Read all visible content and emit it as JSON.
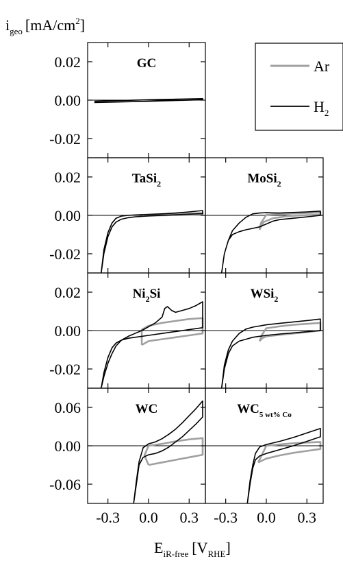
{
  "chart_data": {
    "type": "line",
    "y_axis_title": {
      "main": "i",
      "sub": "geo",
      "unit_pre": "[mA/cm",
      "unit_sup": "2",
      "unit_post": "]"
    },
    "x_axis_title": {
      "main": "E",
      "sub": "iR-free",
      "unit_pre": "[V",
      "unit_sub": "RHE",
      "unit_post": "]"
    },
    "legend": {
      "placement": "top-right",
      "entries": [
        {
          "name": "Ar",
          "color": "#a0a0a0"
        },
        {
          "name": "H",
          "sub": "2",
          "color": "#000000"
        }
      ]
    },
    "xlim": [
      -0.45,
      0.42
    ],
    "x_ticks": [
      -0.3,
      0.0,
      0.3
    ],
    "x_tick_labels": [
      "-0.3",
      "0.0",
      "0.3"
    ],
    "rows": [
      {
        "ylim": [
          -0.03,
          0.03
        ],
        "y_ticks": [
          0.02,
          0.0,
          -0.02
        ],
        "y_tick_labels": [
          "0.02",
          "0.00",
          "-0.02"
        ]
      },
      {
        "ylim": [
          -0.03,
          0.03
        ],
        "y_ticks": [
          0.02,
          0.0,
          -0.02
        ],
        "y_tick_labels": [
          "0.02",
          "0.00",
          "-0.02"
        ]
      },
      {
        "ylim": [
          -0.03,
          0.03
        ],
        "y_ticks": [
          0.02,
          0.0,
          -0.02
        ],
        "y_tick_labels": [
          "0.02",
          "0.00",
          "-0.02"
        ]
      },
      {
        "ylim": [
          -0.09,
          0.09
        ],
        "y_ticks": [
          0.06,
          0.0,
          -0.06
        ],
        "y_tick_labels": [
          "0.06",
          "0.00",
          "-0.06"
        ]
      }
    ],
    "panels": [
      {
        "label": "GC",
        "label_sub": "",
        "row": 0,
        "col": 0,
        "series": [
          {
            "name": "H2",
            "color": "#000000",
            "x": [
              -0.4,
              0.0,
              0.4,
              0.4,
              0.0,
              -0.4
            ],
            "y": [
              -0.0012,
              -0.0006,
              0.0002,
              0.0008,
              0.0002,
              -0.0006
            ]
          }
        ]
      },
      {
        "label": "TaSi",
        "label_sub": "2",
        "row": 1,
        "col": 0,
        "series": [
          {
            "name": "Ar",
            "color": "#a0a0a0",
            "x": [
              -0.05,
              0.1,
              0.25,
              0.4,
              0.4,
              0.25,
              0.1,
              -0.05
            ],
            "y": [
              -0.0003,
              0.0,
              0.0002,
              0.0004,
              0.0012,
              0.0008,
              0.0005,
              -0.0003
            ]
          },
          {
            "name": "H2",
            "color": "#000000",
            "x": [
              -0.35,
              -0.33,
              -0.3,
              -0.27,
              -0.24,
              -0.2,
              -0.15,
              -0.1,
              0.0,
              0.1,
              0.2,
              0.3,
              0.4,
              0.4,
              0.3,
              0.2,
              0.1,
              0.0,
              -0.1,
              -0.15,
              -0.2,
              -0.24,
              -0.27,
              -0.3,
              -0.33,
              -0.35
            ],
            "y": [
              -0.03,
              -0.02,
              -0.011,
              -0.006,
              -0.0035,
              -0.002,
              -0.0012,
              -0.0008,
              -0.0003,
              0.0,
              0.0003,
              0.0006,
              0.0009,
              0.0025,
              0.0018,
              0.0012,
              0.0008,
              0.0005,
              0.0002,
              0.0,
              -0.0004,
              -0.0015,
              -0.004,
              -0.009,
              -0.018,
              -0.03
            ]
          }
        ]
      },
      {
        "label": "MoSi",
        "label_sub": "2",
        "row": 1,
        "col": 1,
        "series": [
          {
            "name": "Ar",
            "color": "#a0a0a0",
            "x": [
              -0.05,
              -0.04,
              -0.02,
              0.05,
              0.15,
              0.25,
              0.4,
              0.4,
              0.25,
              0.1,
              0.0,
              -0.04,
              -0.05
            ],
            "y": [
              -0.0075,
              -0.006,
              -0.0035,
              -0.0015,
              -0.0005,
              0.0,
              0.0004,
              0.0015,
              0.0011,
              0.0007,
              0.0003,
              -0.004,
              -0.0075
            ]
          },
          {
            "name": "H2",
            "color": "#000000",
            "x": [
              -0.33,
              -0.31,
              -0.28,
              -0.25,
              -0.2,
              -0.15,
              -0.1,
              -0.05,
              0.0,
              0.05,
              0.1,
              0.2,
              0.3,
              0.4,
              0.4,
              0.3,
              0.2,
              0.1,
              0.05,
              0.0,
              -0.05,
              -0.1,
              -0.15,
              -0.2,
              -0.25,
              -0.28,
              -0.31,
              -0.33
            ],
            "y": [
              -0.03,
              -0.02,
              -0.013,
              -0.01,
              -0.0085,
              -0.0075,
              -0.0068,
              -0.006,
              -0.0045,
              -0.003,
              -0.0022,
              -0.0015,
              -0.0008,
              0.0,
              0.0022,
              0.0018,
              0.0015,
              0.0012,
              0.0013,
              0.0014,
              0.0012,
              0.0008,
              -0.001,
              -0.004,
              -0.008,
              -0.013,
              -0.02,
              -0.03
            ]
          }
        ]
      },
      {
        "label": "Ni",
        "label_sub": "2",
        "label_post": "Si",
        "row": 2,
        "col": 0,
        "series": [
          {
            "name": "Ar",
            "color": "#a0a0a0",
            "x": [
              -0.05,
              0.0,
              0.1,
              0.2,
              0.3,
              0.4,
              0.4,
              0.3,
              0.2,
              0.1,
              0.0,
              -0.05,
              -0.05
            ],
            "y": [
              -0.0075,
              -0.0055,
              -0.0045,
              -0.0035,
              -0.0025,
              -0.0015,
              0.0065,
              0.006,
              0.005,
              0.004,
              0.0025,
              0.0005,
              -0.0075
            ]
          },
          {
            "name": "H2",
            "color": "#000000",
            "x": [
              -0.35,
              -0.33,
              -0.3,
              -0.27,
              -0.24,
              -0.2,
              -0.15,
              -0.1,
              0.0,
              0.1,
              0.2,
              0.3,
              0.4,
              0.4,
              0.35,
              0.3,
              0.25,
              0.2,
              0.17,
              0.14,
              0.12,
              0.1,
              0.05,
              0.0,
              -0.05,
              -0.1,
              -0.15,
              -0.2,
              -0.24,
              -0.27,
              -0.3,
              -0.33,
              -0.35
            ],
            "y": [
              -0.03,
              -0.022,
              -0.014,
              -0.009,
              -0.0065,
              -0.005,
              -0.004,
              -0.0035,
              -0.0025,
              -0.0015,
              -0.0005,
              0.0005,
              0.0015,
              0.015,
              0.013,
              0.0115,
              0.0105,
              0.0095,
              0.0105,
              0.0125,
              0.0115,
              0.007,
              0.004,
              0.002,
              0.0,
              -0.0015,
              -0.003,
              -0.005,
              -0.008,
              -0.012,
              -0.017,
              -0.024,
              -0.03
            ]
          }
        ]
      },
      {
        "label": "WSi",
        "label_sub": "2",
        "row": 2,
        "col": 1,
        "series": [
          {
            "name": "Ar",
            "color": "#a0a0a0",
            "x": [
              -0.05,
              -0.03,
              0.0,
              0.1,
              0.2,
              0.3,
              0.4,
              0.4,
              0.3,
              0.2,
              0.1,
              0.0,
              -0.03,
              -0.05
            ],
            "y": [
              -0.0055,
              -0.004,
              -0.003,
              -0.0022,
              -0.0015,
              -0.0008,
              0.0,
              0.004,
              0.0035,
              0.003,
              0.0022,
              0.0012,
              -0.002,
              -0.0055
            ]
          },
          {
            "name": "H2",
            "color": "#000000",
            "x": [
              -0.33,
              -0.31,
              -0.28,
              -0.25,
              -0.2,
              -0.15,
              -0.1,
              0.0,
              0.1,
              0.2,
              0.3,
              0.4,
              0.4,
              0.3,
              0.2,
              0.1,
              0.0,
              -0.1,
              -0.15,
              -0.2,
              -0.25,
              -0.28,
              -0.31,
              -0.33
            ],
            "y": [
              -0.03,
              -0.02,
              -0.012,
              -0.008,
              -0.0055,
              -0.0045,
              -0.0035,
              -0.0025,
              -0.0018,
              -0.0012,
              -0.0006,
              0.0,
              0.006,
              0.0052,
              0.0045,
              0.0038,
              0.003,
              0.0018,
              0.0008,
              -0.0015,
              -0.0055,
              -0.01,
              -0.018,
              -0.03
            ]
          }
        ]
      },
      {
        "label": "WC",
        "label_sub": "",
        "row": 3,
        "col": 0,
        "series": [
          {
            "name": "Ar",
            "color": "#a0a0a0",
            "x": [
              0.0,
              0.1,
              0.2,
              0.3,
              0.4,
              0.4,
              0.3,
              0.2,
              0.1,
              0.0,
              -0.03,
              0.0
            ],
            "y": [
              -0.03,
              -0.026,
              -0.022,
              -0.018,
              -0.014,
              0.012,
              0.01,
              0.007,
              0.003,
              0.0,
              -0.015,
              -0.03
            ]
          },
          {
            "name": "H2",
            "color": "#000000",
            "x": [
              -0.11,
              -0.09,
              -0.07,
              -0.04,
              0.0,
              0.05,
              0.1,
              0.15,
              0.2,
              0.25,
              0.3,
              0.35,
              0.4,
              0.4,
              0.35,
              0.3,
              0.25,
              0.2,
              0.15,
              0.1,
              0.05,
              0.0,
              -0.04,
              -0.07,
              -0.09,
              -0.11
            ],
            "y": [
              -0.09,
              -0.06,
              -0.03,
              -0.018,
              -0.014,
              -0.012,
              -0.008,
              -0.002,
              0.006,
              0.014,
              0.024,
              0.034,
              0.045,
              0.07,
              0.058,
              0.047,
              0.036,
              0.026,
              0.018,
              0.011,
              0.006,
              0.003,
              -0.003,
              -0.025,
              -0.055,
              -0.09
            ]
          }
        ]
      },
      {
        "label": "WC",
        "label_sub": "5 wt% Co",
        "row": 3,
        "col": 1,
        "series": [
          {
            "name": "Ar",
            "color": "#a0a0a0",
            "x": [
              -0.06,
              0.0,
              0.1,
              0.2,
              0.3,
              0.4,
              0.4,
              0.3,
              0.2,
              0.1,
              0.0,
              -0.06
            ],
            "y": [
              -0.026,
              -0.02,
              -0.015,
              -0.011,
              -0.008,
              -0.005,
              0.006,
              0.005,
              0.004,
              0.002,
              0.0,
              -0.026
            ]
          },
          {
            "name": "H2",
            "color": "#000000",
            "x": [
              -0.14,
              -0.12,
              -0.1,
              -0.08,
              -0.05,
              0.0,
              0.1,
              0.2,
              0.3,
              0.4,
              0.4,
              0.3,
              0.2,
              0.1,
              0.0,
              -0.05,
              -0.08,
              -0.1,
              -0.12,
              -0.14
            ],
            "y": [
              -0.09,
              -0.06,
              -0.035,
              -0.022,
              -0.016,
              -0.012,
              -0.006,
              0.0,
              0.007,
              0.014,
              0.027,
              0.02,
              0.013,
              0.007,
              0.002,
              -0.002,
              -0.012,
              -0.03,
              -0.055,
              -0.09
            ]
          }
        ]
      }
    ]
  }
}
